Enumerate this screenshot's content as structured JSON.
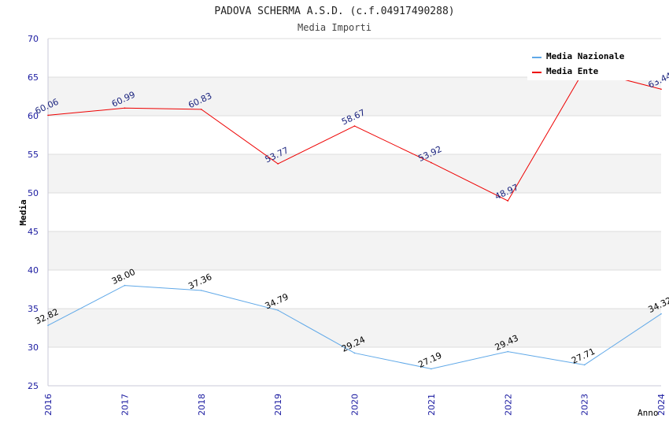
{
  "chart_data": {
    "type": "line",
    "title": "PADOVA SCHERMA A.S.D. (c.f.04917490288)",
    "subtitle": "Media Importi",
    "xlabel": "Anno",
    "ylabel": "Media",
    "x": [
      "2016",
      "2017",
      "2018",
      "2019",
      "2020",
      "2021",
      "2022",
      "2023",
      "2024"
    ],
    "ylim": [
      25,
      70
    ],
    "yticks": [
      "25",
      "30",
      "35",
      "40",
      "45",
      "50",
      "55",
      "60",
      "65",
      "70"
    ],
    "grid": true,
    "legend_position": "top-right",
    "series": [
      {
        "name": "Media Nazionale",
        "color": "#5fa8e8",
        "label_color": "#000000",
        "values": [
          32.82,
          38.0,
          37.36,
          34.79,
          29.24,
          27.19,
          29.43,
          27.71,
          34.32
        ],
        "labels": [
          "32.82",
          "38.00",
          "37.36",
          "34.79",
          "29.24",
          "27.19",
          "29.43",
          "27.71",
          "34.32"
        ]
      },
      {
        "name": "Media Ente",
        "color": "#ee0000",
        "label_color": "#1a237e",
        "values": [
          60.06,
          60.99,
          60.83,
          53.77,
          58.67,
          53.92,
          48.97,
          66.0,
          63.44
        ],
        "labels": [
          "60.06",
          "60.99",
          "60.83",
          "53.77",
          "58.67",
          "53.92",
          "48.97",
          "",
          "63.44"
        ]
      }
    ]
  }
}
